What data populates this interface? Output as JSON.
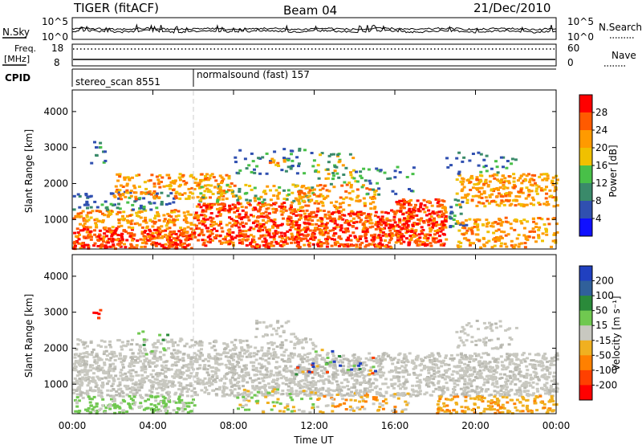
{
  "header": {
    "station": "TIGER (fitACF)",
    "beam": "Beam 04",
    "date": "21/Dec/2010"
  },
  "strip": {
    "nsky_label": "N.Sky",
    "nsky_ticks": [
      "10^5",
      "10^0"
    ],
    "nsearch_label": "N.Search",
    "nsearch_ticks": [
      "10^5",
      "10^0"
    ],
    "freq_label": "Freq.",
    "freq_unit": "[MHz]",
    "freq_ticks": [
      "18",
      "8"
    ],
    "nave_label": "Nave",
    "nave_ticks": [
      "60",
      "0"
    ],
    "cpid_label": "CPID",
    "cpid_segments": [
      {
        "name": "stereo_scan 8551",
        "start_hour": 0,
        "end_hour": 6
      },
      {
        "name": "normalsound (fast) 157",
        "start_hour": 6,
        "end_hour": 24
      }
    ]
  },
  "chart_data": [
    {
      "type": "heatmap",
      "name": "power-panel",
      "title": "",
      "xlabel": "",
      "ylabel": "Slant Range [km]",
      "xlim": [
        0,
        24
      ],
      "ylim": [
        180,
        4600
      ],
      "yticks": [
        1000,
        2000,
        3000,
        4000
      ],
      "colorbar": {
        "label": "Power [dB]",
        "ticks": [
          "28",
          "24",
          "20",
          "16",
          "12",
          "8",
          "4"
        ],
        "colors": [
          "#ff0000",
          "#ff5a00",
          "#ff9a00",
          "#f0c000",
          "#48c048",
          "#3a8a6a",
          "#3050b0",
          "#1010ff"
        ]
      }
    },
    {
      "type": "heatmap",
      "name": "velocity-panel",
      "title": "",
      "xlabel": "Time UT",
      "ylabel": "Slant Range [km]",
      "xlim": [
        0,
        24
      ],
      "ylim": [
        180,
        4600
      ],
      "yticks": [
        1000,
        2000,
        3000,
        4000
      ],
      "xticks": [
        "00:00",
        "04:00",
        "08:00",
        "12:00",
        "16:00",
        "20:00",
        "00:00"
      ],
      "colorbar": {
        "label": "Velocity [m s⁻¹]",
        "ticks": [
          "200",
          "100",
          "50",
          "15",
          "-15",
          "-50",
          "-100",
          "-200"
        ],
        "colors": [
          "#2040c0",
          "#30609a",
          "#2a8a3a",
          "#70c850",
          "#c8c8c0",
          "#f0b020",
          "#ff8000",
          "#ff4000",
          "#ff0000"
        ]
      }
    }
  ],
  "colors": {
    "ground_scatter": "#c0c0b8",
    "grid_line": "#c8c8c8"
  }
}
